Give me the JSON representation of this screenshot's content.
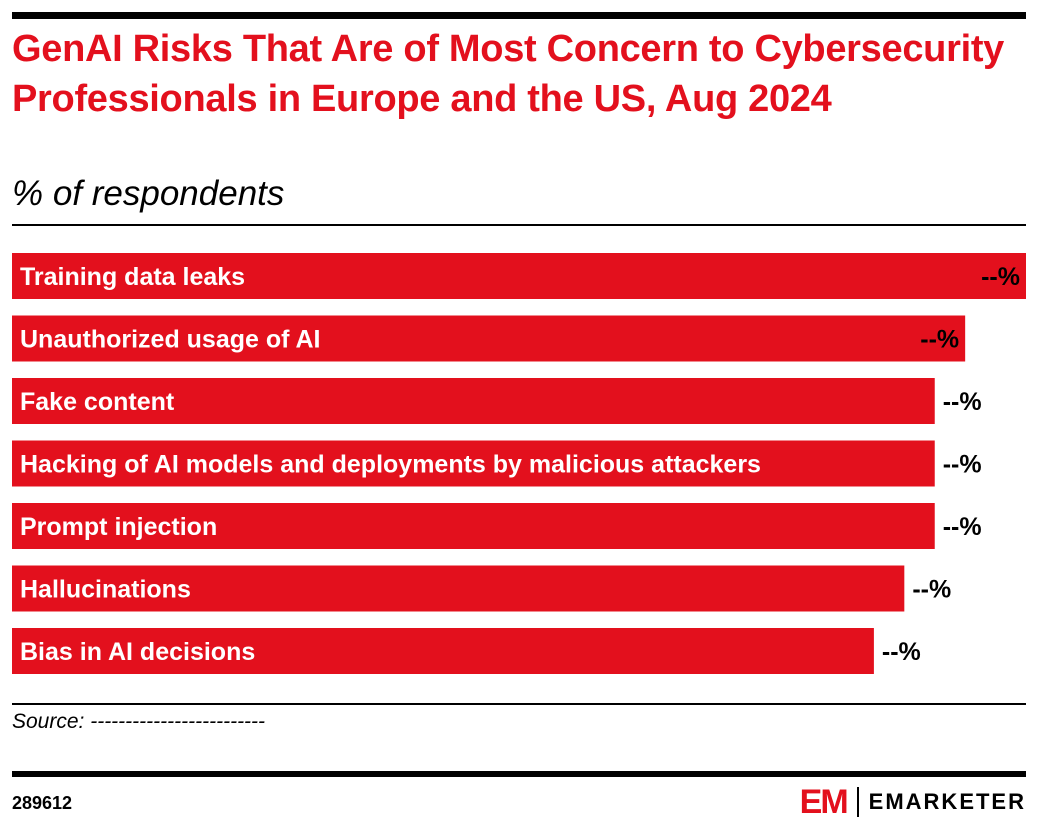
{
  "header": {
    "title": "GenAI Risks That Are of Most Concern to Cybersecurity Professionals in Europe and the US, Aug 2024",
    "subtitle": "% of respondents"
  },
  "chart_data": {
    "type": "bar",
    "orientation": "horizontal",
    "categories": [
      "Training data leaks",
      "Unauthorized usage of AI",
      "Fake content",
      "Hacking of AI models and deployments by malicious attackers",
      "Prompt injection",
      "Hallucinations",
      "Bias in AI decisions"
    ],
    "values": [
      100,
      94,
      91,
      91,
      91,
      88,
      85
    ],
    "value_labels": [
      "--%",
      "--%",
      "--%",
      "--%",
      "--%",
      "--%",
      "--%"
    ],
    "color": "#e3101d"
  },
  "footer": {
    "source": "Source: -------------------------",
    "chart_id": "289612",
    "logo_mark": "EM",
    "logo_text": "EMARKETER"
  }
}
